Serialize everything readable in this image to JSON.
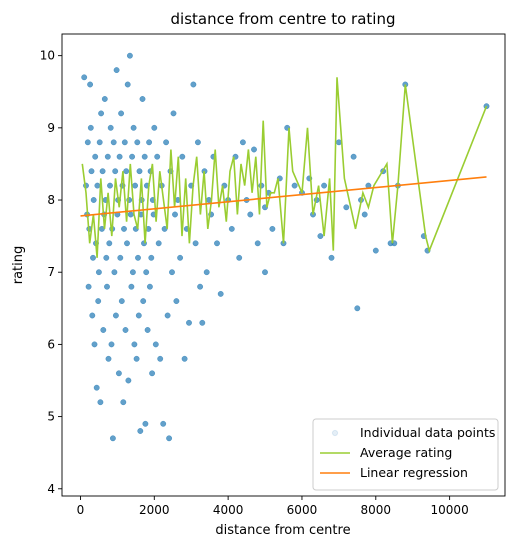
{
  "chart_data": {
    "type": "scatter",
    "title": "distance from centre to rating",
    "xlabel": "distance from centre",
    "ylabel": "rating",
    "xlim": [
      -500,
      11500
    ],
    "ylim": [
      3.9,
      10.3
    ],
    "xticks": [
      0,
      2000,
      4000,
      6000,
      8000,
      10000
    ],
    "yticks": [
      4,
      5,
      6,
      7,
      8,
      9,
      10
    ],
    "grid": false,
    "legend": "bottom-right",
    "series": [
      {
        "name": "Individual data points",
        "kind": "scatter",
        "color": "#1f77b4",
        "points": [
          [
            100,
            9.7
          ],
          [
            150,
            8.2
          ],
          [
            180,
            7.8
          ],
          [
            200,
            8.8
          ],
          [
            220,
            6.8
          ],
          [
            240,
            7.6
          ],
          [
            260,
            9.6
          ],
          [
            280,
            9.0
          ],
          [
            300,
            8.4
          ],
          [
            320,
            6.4
          ],
          [
            340,
            7.2
          ],
          [
            360,
            8.0
          ],
          [
            380,
            6.0
          ],
          [
            400,
            8.6
          ],
          [
            420,
            7.4
          ],
          [
            440,
            5.4
          ],
          [
            460,
            8.2
          ],
          [
            480,
            6.6
          ],
          [
            500,
            7.0
          ],
          [
            520,
            8.8
          ],
          [
            540,
            5.2
          ],
          [
            560,
            9.2
          ],
          [
            580,
            7.6
          ],
          [
            600,
            8.4
          ],
          [
            620,
            6.2
          ],
          [
            640,
            7.8
          ],
          [
            660,
            9.4
          ],
          [
            680,
            8.0
          ],
          [
            700,
            7.2
          ],
          [
            720,
            6.8
          ],
          [
            740,
            8.6
          ],
          [
            760,
            5.8
          ],
          [
            780,
            7.4
          ],
          [
            800,
            8.2
          ],
          [
            820,
            9.0
          ],
          [
            840,
            6.0
          ],
          [
            860,
            7.6
          ],
          [
            880,
            4.7
          ],
          [
            900,
            8.8
          ],
          [
            920,
            7.0
          ],
          [
            940,
            8.4
          ],
          [
            960,
            6.4
          ],
          [
            980,
            9.8
          ],
          [
            1000,
            7.8
          ],
          [
            1020,
            8.0
          ],
          [
            1040,
            5.6
          ],
          [
            1060,
            8.6
          ],
          [
            1080,
            7.2
          ],
          [
            1100,
            9.2
          ],
          [
            1120,
            6.6
          ],
          [
            1140,
            8.2
          ],
          [
            1160,
            5.2
          ],
          [
            1180,
            7.6
          ],
          [
            1200,
            8.8
          ],
          [
            1220,
            6.2
          ],
          [
            1240,
            8.4
          ],
          [
            1260,
            7.4
          ],
          [
            1280,
            9.6
          ],
          [
            1300,
            5.5
          ],
          [
            1320,
            8.0
          ],
          [
            1340,
            10.0
          ],
          [
            1360,
            7.8
          ],
          [
            1380,
            6.8
          ],
          [
            1400,
            8.6
          ],
          [
            1420,
            7.0
          ],
          [
            1440,
            9.0
          ],
          [
            1460,
            6.0
          ],
          [
            1480,
            8.2
          ],
          [
            1500,
            7.6
          ],
          [
            1520,
            5.8
          ],
          [
            1540,
            8.8
          ],
          [
            1560,
            7.2
          ],
          [
            1580,
            6.4
          ],
          [
            1600,
            8.4
          ],
          [
            1620,
            4.8
          ],
          [
            1640,
            7.8
          ],
          [
            1660,
            8.0
          ],
          [
            1680,
            9.4
          ],
          [
            1700,
            6.6
          ],
          [
            1720,
            7.4
          ],
          [
            1740,
            8.6
          ],
          [
            1760,
            4.9
          ],
          [
            1780,
            7.0
          ],
          [
            1800,
            8.2
          ],
          [
            1820,
            6.2
          ],
          [
            1840,
            7.6
          ],
          [
            1860,
            8.8
          ],
          [
            1880,
            6.8
          ],
          [
            1900,
            8.4
          ],
          [
            1920,
            7.2
          ],
          [
            1940,
            5.6
          ],
          [
            1960,
            8.0
          ],
          [
            1980,
            7.8
          ],
          [
            2000,
            9.0
          ],
          [
            2040,
            6.0
          ],
          [
            2080,
            8.6
          ],
          [
            2120,
            7.4
          ],
          [
            2160,
            5.8
          ],
          [
            2200,
            8.2
          ],
          [
            2240,
            4.9
          ],
          [
            2280,
            7.6
          ],
          [
            2320,
            8.8
          ],
          [
            2360,
            6.4
          ],
          [
            2400,
            4.7
          ],
          [
            2440,
            8.4
          ],
          [
            2480,
            7.0
          ],
          [
            2520,
            9.2
          ],
          [
            2560,
            7.8
          ],
          [
            2600,
            6.6
          ],
          [
            2640,
            8.0
          ],
          [
            2700,
            7.2
          ],
          [
            2760,
            8.6
          ],
          [
            2820,
            5.8
          ],
          [
            2880,
            7.6
          ],
          [
            2940,
            6.3
          ],
          [
            3000,
            8.2
          ],
          [
            3060,
            9.6
          ],
          [
            3120,
            7.4
          ],
          [
            3180,
            8.8
          ],
          [
            3240,
            6.8
          ],
          [
            3300,
            6.3
          ],
          [
            3360,
            8.4
          ],
          [
            3420,
            7.0
          ],
          [
            3480,
            8.0
          ],
          [
            3540,
            7.8
          ],
          [
            3600,
            8.6
          ],
          [
            3700,
            7.4
          ],
          [
            3800,
            6.7
          ],
          [
            3900,
            8.2
          ],
          [
            4000,
            8.0
          ],
          [
            4100,
            7.6
          ],
          [
            4200,
            8.6
          ],
          [
            4300,
            7.2
          ],
          [
            4400,
            8.8
          ],
          [
            4500,
            8.0
          ],
          [
            4600,
            7.8
          ],
          [
            4700,
            8.7
          ],
          [
            4800,
            7.4
          ],
          [
            4900,
            8.2
          ],
          [
            5000,
            7.0
          ],
          [
            5000,
            7.9
          ],
          [
            5100,
            8.1
          ],
          [
            5200,
            7.6
          ],
          [
            5400,
            8.3
          ],
          [
            5500,
            7.4
          ],
          [
            5600,
            9.0
          ],
          [
            5800,
            8.2
          ],
          [
            6000,
            8.1
          ],
          [
            6200,
            8.3
          ],
          [
            6300,
            7.8
          ],
          [
            6400,
            8.0
          ],
          [
            6500,
            7.5
          ],
          [
            6600,
            8.2
          ],
          [
            6800,
            7.2
          ],
          [
            7000,
            8.8
          ],
          [
            7200,
            7.9
          ],
          [
            7400,
            8.6
          ],
          [
            7500,
            6.5
          ],
          [
            7600,
            8.0
          ],
          [
            7700,
            7.8
          ],
          [
            7800,
            8.2
          ],
          [
            8000,
            7.3
          ],
          [
            8200,
            8.4
          ],
          [
            8400,
            7.4
          ],
          [
            8500,
            7.4
          ],
          [
            8600,
            8.2
          ],
          [
            8800,
            9.6
          ],
          [
            9300,
            7.5
          ],
          [
            9400,
            7.3
          ],
          [
            11000,
            9.3
          ]
        ]
      },
      {
        "name": "Average rating",
        "kind": "line",
        "color": "#9acd32",
        "points": [
          [
            50,
            8.5
          ],
          [
            150,
            8.1
          ],
          [
            250,
            7.4
          ],
          [
            350,
            7.8
          ],
          [
            450,
            7.2
          ],
          [
            550,
            8.3
          ],
          [
            650,
            7.6
          ],
          [
            750,
            8.1
          ],
          [
            850,
            7.5
          ],
          [
            950,
            8.3
          ],
          [
            1050,
            7.9
          ],
          [
            1150,
            8.4
          ],
          [
            1250,
            7.7
          ],
          [
            1350,
            8.5
          ],
          [
            1450,
            7.8
          ],
          [
            1550,
            7.6
          ],
          [
            1650,
            8.3
          ],
          [
            1750,
            7.4
          ],
          [
            1850,
            8.2
          ],
          [
            1950,
            8.5
          ],
          [
            2050,
            7.7
          ],
          [
            2150,
            8.4
          ],
          [
            2250,
            8.0
          ],
          [
            2350,
            7.6
          ],
          [
            2450,
            8.7
          ],
          [
            2550,
            7.9
          ],
          [
            2650,
            8.6
          ],
          [
            2750,
            7.5
          ],
          [
            2850,
            8.3
          ],
          [
            2950,
            7.4
          ],
          [
            3050,
            8.2
          ],
          [
            3150,
            8.6
          ],
          [
            3250,
            7.8
          ],
          [
            3350,
            8.4
          ],
          [
            3450,
            7.6
          ],
          [
            3550,
            8.0
          ],
          [
            3650,
            8.7
          ],
          [
            3750,
            7.9
          ],
          [
            3850,
            8.2
          ],
          [
            3950,
            7.7
          ],
          [
            4050,
            8.4
          ],
          [
            4150,
            8.6
          ],
          [
            4250,
            7.8
          ],
          [
            4350,
            8.5
          ],
          [
            4450,
            8.2
          ],
          [
            4550,
            8.7
          ],
          [
            4650,
            8.1
          ],
          [
            4750,
            8.6
          ],
          [
            4850,
            7.8
          ],
          [
            4950,
            9.1
          ],
          [
            5050,
            7.9
          ],
          [
            5150,
            8.1
          ],
          [
            5250,
            8.1
          ],
          [
            5350,
            8.3
          ],
          [
            5500,
            7.4
          ],
          [
            5650,
            9.0
          ],
          [
            5750,
            8.4
          ],
          [
            6000,
            8.1
          ],
          [
            6150,
            9.0
          ],
          [
            6300,
            7.8
          ],
          [
            6450,
            8.2
          ],
          [
            6600,
            7.5
          ],
          [
            6750,
            8.3
          ],
          [
            6850,
            7.3
          ],
          [
            6950,
            9.7
          ],
          [
            7150,
            8.3
          ],
          [
            7450,
            7.6
          ],
          [
            7650,
            8.1
          ],
          [
            7800,
            7.9
          ],
          [
            7950,
            8.2
          ],
          [
            8300,
            8.5
          ],
          [
            8450,
            7.4
          ],
          [
            8600,
            8.2
          ],
          [
            8800,
            9.6
          ],
          [
            9350,
            7.5
          ],
          [
            9450,
            7.3
          ],
          [
            11000,
            9.3
          ]
        ]
      },
      {
        "name": "Linear regression",
        "kind": "line",
        "color": "#ff7f0e",
        "points": [
          [
            0,
            7.78
          ],
          [
            11000,
            8.32
          ]
        ]
      }
    ]
  }
}
